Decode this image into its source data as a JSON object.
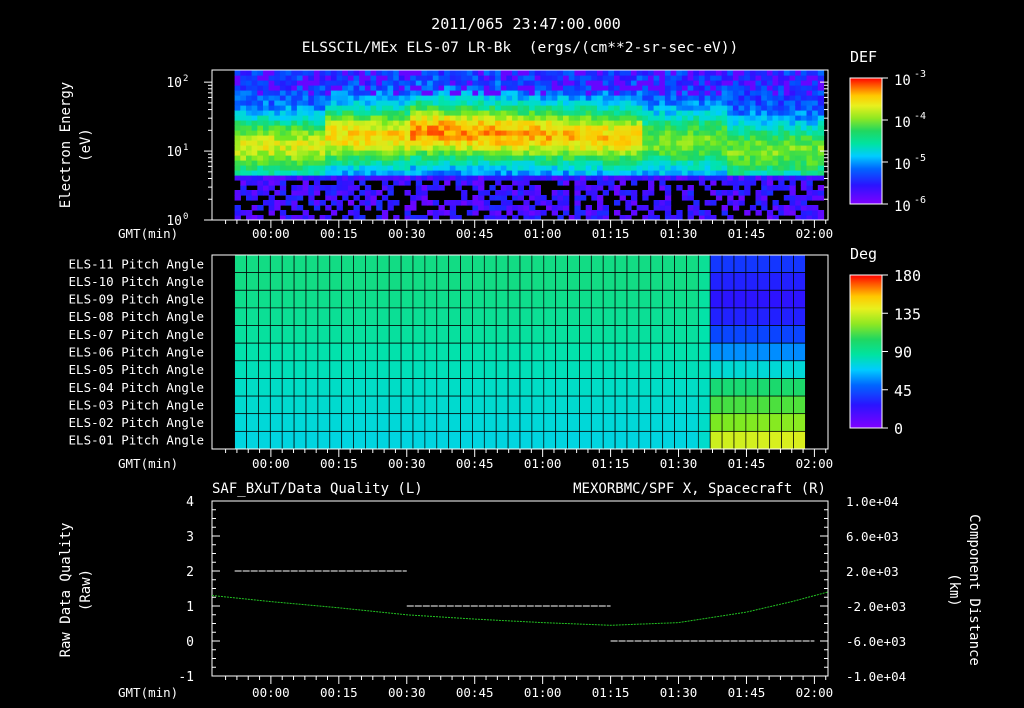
{
  "header": {
    "timestamp": "2011/065 23:47:00.000",
    "subtitle": "ELSSCIL/MEx ELS-07 LR-Bk  (ergs/(cm**2-sr-sec-eV))"
  },
  "colors": {
    "background": "#000000",
    "axis": "#ffffff",
    "right_series": "#22c322",
    "colormap": [
      "#7f00ff",
      "#2a14ff",
      "#0055ff",
      "#00ccff",
      "#00e3b0",
      "#20d760",
      "#6fe822",
      "#d7f01e",
      "#ffc800",
      "#ff5a00",
      "#ff0000"
    ]
  },
  "time_axis": {
    "label": "GMT(min)",
    "tick_labels": [
      "00:00",
      "00:15",
      "00:30",
      "00:45",
      "01:00",
      "01:15",
      "01:30",
      "01:45",
      "02:00"
    ],
    "tick_minutes": [
      0,
      15,
      30,
      45,
      60,
      75,
      90,
      105,
      120
    ],
    "range_minutes": [
      -13,
      123
    ]
  },
  "chart_data": [
    {
      "type": "heatmap",
      "name": "energy-spectrogram",
      "ylabel_line1": "Electron Energy",
      "ylabel_line2": "(eV)",
      "y_scale": "log",
      "ylim": [
        1,
        150
      ],
      "ytick_values": [
        1,
        10,
        100
      ],
      "yticks": [
        {
          "base": "10",
          "exp": "0"
        },
        {
          "base": "10",
          "exp": "1"
        },
        {
          "base": "10",
          "exp": "2"
        }
      ],
      "colorbar": {
        "title": "DEF",
        "range": [
          1e-06,
          0.001
        ],
        "ticks": [
          {
            "base": "10",
            "exp": "-3"
          },
          {
            "base": "10",
            "exp": "-4"
          },
          {
            "base": "10",
            "exp": "-5"
          },
          {
            "base": "10",
            "exp": "-6"
          }
        ]
      },
      "data_start_minute": -8,
      "data_end_minute": 122
    },
    {
      "type": "heatmap",
      "name": "pitch-angle",
      "rows": [
        "ELS-11 Pitch Angle",
        "ELS-10 Pitch Angle",
        "ELS-09 Pitch Angle",
        "ELS-08 Pitch Angle",
        "ELS-07 Pitch Angle",
        "ELS-06 Pitch Angle",
        "ELS-05 Pitch Angle",
        "ELS-04 Pitch Angle",
        "ELS-03 Pitch Angle",
        "ELS-02 Pitch Angle",
        "ELS-01 Pitch Angle"
      ],
      "values_deg_before_change": [
        82,
        82,
        80,
        78,
        76,
        73,
        70,
        67,
        65,
        63,
        61
      ],
      "values_deg_after_change": [
        28,
        22,
        18,
        22,
        32,
        45,
        64,
        85,
        98,
        110,
        124
      ],
      "change_minute": 97,
      "data_start_minute": -8,
      "data_end_minute": 118,
      "colorbar": {
        "title": "Deg",
        "range": [
          0,
          180
        ],
        "ticks": [
          "180",
          "135",
          "90",
          "45",
          "0"
        ]
      }
    },
    {
      "type": "line",
      "name": "data-quality-and-position",
      "title_left": "SAF_BXuT/Data Quality (L)",
      "title_right": "MEXORBMC/SPF X, Spacecraft (R)",
      "left_axis": {
        "label_line1": "Raw Data Quality",
        "label_line2": "(Raw)",
        "ylim": [
          -1,
          4
        ],
        "ticks": [
          "-1",
          "0",
          "1",
          "2",
          "3",
          "4"
        ]
      },
      "right_axis": {
        "label_line1": "Component Distance",
        "label_line2": "(km)",
        "ylim": [
          -10000,
          10000
        ],
        "ticks": [
          "1.0e+04",
          "6.0e+03",
          "2.0e+03",
          "-2.0e+03",
          "-6.0e+03",
          "-1.0e+04"
        ]
      },
      "series": [
        {
          "name": "Data Quality",
          "axis": "left",
          "segments": [
            {
              "x": [
                -8,
                30
              ],
              "y": 2
            },
            {
              "x": [
                30,
                75
              ],
              "y": 1
            },
            {
              "x": [
                75,
                120
              ],
              "y": 0
            }
          ]
        },
        {
          "name": "SPF X",
          "axis": "right",
          "x": [
            -13,
            0,
            15,
            30,
            45,
            60,
            75,
            90,
            105,
            115,
            123
          ],
          "y": [
            -800,
            -1500,
            -2200,
            -3000,
            -3500,
            -3900,
            -4200,
            -3900,
            -2700,
            -1500,
            -400
          ]
        }
      ]
    }
  ]
}
